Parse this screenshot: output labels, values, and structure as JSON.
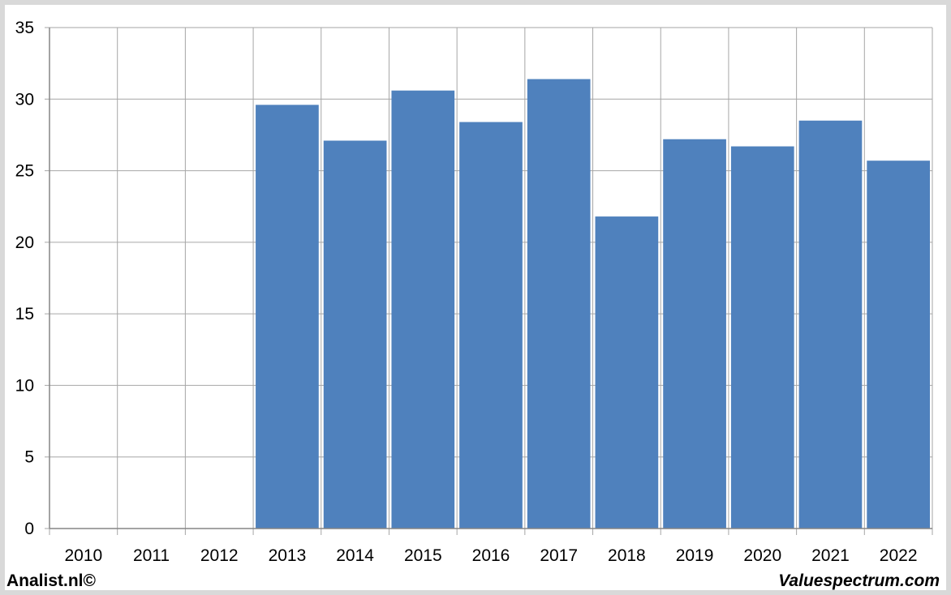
{
  "chart_data": {
    "type": "bar",
    "categories": [
      "2010",
      "2011",
      "2012",
      "2013",
      "2014",
      "2015",
      "2016",
      "2017",
      "2018",
      "2019",
      "2020",
      "2021",
      "2022"
    ],
    "values": [
      0,
      0,
      0,
      29.6,
      27.1,
      30.6,
      28.4,
      31.4,
      21.8,
      27.2,
      26.7,
      28.5,
      25.7
    ],
    "yticks": [
      "0",
      "5",
      "10",
      "15",
      "20",
      "25",
      "30",
      "35"
    ],
    "ylim": [
      0,
      35
    ],
    "grid": true,
    "bar_color": "#4f81bd",
    "grid_color": "#a6a6a6",
    "title": "",
    "xlabel": "",
    "ylabel": ""
  },
  "footer": {
    "left": "Analist.nl©",
    "right": "Valuespectrum.com"
  }
}
